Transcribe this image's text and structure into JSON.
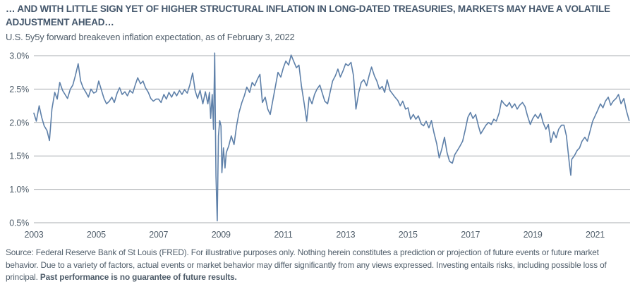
{
  "header": {
    "title": "… AND WITH LITTLE SIGN YET OF HIGHER STRUCTURAL INFLATION IN LONG-DATED TREASURIES, MARKETS MAY HAVE A VOLATILE ADJUSTMENT AHEAD…",
    "subtitle": "U.S. 5y5y forward breakeven inflation expectation, as of February 3, 2022"
  },
  "footer": {
    "source_text": "Source: Federal Reserve Bank of St Louis (FRED). For illustrative purposes only. Nothing herein constitutes a prediction or projection of future events or future market behavior. Due to a variety of factors, actual events or market behavior may differ significantly from any views expressed. Investing entails risks, including possible loss of principal.",
    "source_bold": "Past performance is no guarantee of future results."
  },
  "colors": {
    "title_text": "#44576c",
    "body_text": "#4f5d6a",
    "axis_text": "#4f5d6a",
    "gridline": "#a9adb1",
    "line": "#5e80a9",
    "background": "#ffffff"
  },
  "chart_data": {
    "type": "line",
    "title": "U.S. 5y5y forward breakeven inflation expectation, as of February 3, 2022",
    "xlabel": "",
    "ylabel": "",
    "grid": "horizontal",
    "legend": "none",
    "xlim": [
      2003.0,
      2022.12
    ],
    "ylim": [
      0.5,
      3.0
    ],
    "x_ticks": [
      2003,
      2005,
      2007,
      2009,
      2011,
      2013,
      2015,
      2017,
      2019,
      2021
    ],
    "y_tick_values": [
      3.0,
      2.5,
      2.0,
      1.5,
      1.0,
      0.5
    ],
    "y_tick_labels": [
      "3.0%",
      "2.5%",
      "2.0%",
      "1.5%",
      "1.0%",
      "0.5%"
    ],
    "line_color": "#5e80a9",
    "series": [
      {
        "name": "U.S. 5y5y forward breakeven inflation expectation (%)",
        "points": [
          [
            2003.0,
            2.14
          ],
          [
            2003.08,
            2.02
          ],
          [
            2003.17,
            2.25
          ],
          [
            2003.25,
            2.08
          ],
          [
            2003.33,
            1.95
          ],
          [
            2003.42,
            1.88
          ],
          [
            2003.5,
            1.73
          ],
          [
            2003.58,
            2.2
          ],
          [
            2003.67,
            2.45
          ],
          [
            2003.75,
            2.35
          ],
          [
            2003.83,
            2.6
          ],
          [
            2003.92,
            2.48
          ],
          [
            2004.0,
            2.42
          ],
          [
            2004.08,
            2.36
          ],
          [
            2004.17,
            2.5
          ],
          [
            2004.25,
            2.56
          ],
          [
            2004.33,
            2.7
          ],
          [
            2004.42,
            2.88
          ],
          [
            2004.5,
            2.62
          ],
          [
            2004.58,
            2.52
          ],
          [
            2004.67,
            2.45
          ],
          [
            2004.75,
            2.38
          ],
          [
            2004.83,
            2.5
          ],
          [
            2004.92,
            2.44
          ],
          [
            2005.0,
            2.46
          ],
          [
            2005.08,
            2.62
          ],
          [
            2005.17,
            2.48
          ],
          [
            2005.25,
            2.36
          ],
          [
            2005.33,
            2.28
          ],
          [
            2005.42,
            2.32
          ],
          [
            2005.5,
            2.38
          ],
          [
            2005.58,
            2.3
          ],
          [
            2005.67,
            2.44
          ],
          [
            2005.75,
            2.52
          ],
          [
            2005.83,
            2.42
          ],
          [
            2005.92,
            2.46
          ],
          [
            2006.0,
            2.4
          ],
          [
            2006.08,
            2.48
          ],
          [
            2006.17,
            2.44
          ],
          [
            2006.25,
            2.56
          ],
          [
            2006.33,
            2.67
          ],
          [
            2006.42,
            2.58
          ],
          [
            2006.5,
            2.62
          ],
          [
            2006.58,
            2.52
          ],
          [
            2006.67,
            2.45
          ],
          [
            2006.75,
            2.36
          ],
          [
            2006.83,
            2.32
          ],
          [
            2006.92,
            2.35
          ],
          [
            2007.0,
            2.35
          ],
          [
            2007.08,
            2.3
          ],
          [
            2007.17,
            2.42
          ],
          [
            2007.25,
            2.35
          ],
          [
            2007.33,
            2.45
          ],
          [
            2007.42,
            2.38
          ],
          [
            2007.5,
            2.46
          ],
          [
            2007.58,
            2.4
          ],
          [
            2007.67,
            2.48
          ],
          [
            2007.75,
            2.42
          ],
          [
            2007.83,
            2.49
          ],
          [
            2007.92,
            2.44
          ],
          [
            2008.0,
            2.56
          ],
          [
            2008.09,
            2.74
          ],
          [
            2008.17,
            2.48
          ],
          [
            2008.25,
            2.36
          ],
          [
            2008.33,
            2.48
          ],
          [
            2008.42,
            2.28
          ],
          [
            2008.5,
            2.46
          ],
          [
            2008.58,
            2.28
          ],
          [
            2008.63,
            2.45
          ],
          [
            2008.67,
            2.06
          ],
          [
            2008.72,
            2.42
          ],
          [
            2008.76,
            1.9
          ],
          [
            2008.8,
            3.04
          ],
          [
            2008.84,
            1.2
          ],
          [
            2008.88,
            0.53
          ],
          [
            2008.92,
            1.8
          ],
          [
            2008.96,
            2.03
          ],
          [
            2009.0,
            1.95
          ],
          [
            2009.03,
            1.25
          ],
          [
            2009.08,
            1.62
          ],
          [
            2009.13,
            1.32
          ],
          [
            2009.17,
            1.55
          ],
          [
            2009.25,
            1.65
          ],
          [
            2009.33,
            1.8
          ],
          [
            2009.42,
            1.67
          ],
          [
            2009.5,
            1.95
          ],
          [
            2009.58,
            2.15
          ],
          [
            2009.67,
            2.3
          ],
          [
            2009.75,
            2.4
          ],
          [
            2009.83,
            2.53
          ],
          [
            2009.92,
            2.45
          ],
          [
            2010.0,
            2.6
          ],
          [
            2010.08,
            2.55
          ],
          [
            2010.17,
            2.65
          ],
          [
            2010.25,
            2.72
          ],
          [
            2010.33,
            2.3
          ],
          [
            2010.42,
            2.38
          ],
          [
            2010.5,
            2.2
          ],
          [
            2010.58,
            2.12
          ],
          [
            2010.67,
            2.35
          ],
          [
            2010.75,
            2.55
          ],
          [
            2010.83,
            2.75
          ],
          [
            2010.92,
            2.68
          ],
          [
            2011.0,
            2.82
          ],
          [
            2011.08,
            2.92
          ],
          [
            2011.17,
            2.86
          ],
          [
            2011.25,
            3.01
          ],
          [
            2011.33,
            2.92
          ],
          [
            2011.42,
            2.82
          ],
          [
            2011.5,
            2.86
          ],
          [
            2011.58,
            2.55
          ],
          [
            2011.67,
            2.28
          ],
          [
            2011.75,
            2.02
          ],
          [
            2011.83,
            2.38
          ],
          [
            2011.92,
            2.28
          ],
          [
            2012.0,
            2.42
          ],
          [
            2012.08,
            2.5
          ],
          [
            2012.17,
            2.56
          ],
          [
            2012.25,
            2.44
          ],
          [
            2012.33,
            2.32
          ],
          [
            2012.42,
            2.28
          ],
          [
            2012.5,
            2.45
          ],
          [
            2012.58,
            2.62
          ],
          [
            2012.67,
            2.7
          ],
          [
            2012.75,
            2.8
          ],
          [
            2012.83,
            2.68
          ],
          [
            2012.92,
            2.78
          ],
          [
            2013.0,
            2.88
          ],
          [
            2013.08,
            2.85
          ],
          [
            2013.17,
            2.9
          ],
          [
            2013.25,
            2.7
          ],
          [
            2013.33,
            2.2
          ],
          [
            2013.42,
            2.45
          ],
          [
            2013.5,
            2.6
          ],
          [
            2013.58,
            2.64
          ],
          [
            2013.67,
            2.55
          ],
          [
            2013.75,
            2.7
          ],
          [
            2013.83,
            2.83
          ],
          [
            2013.92,
            2.7
          ],
          [
            2014.0,
            2.62
          ],
          [
            2014.08,
            2.5
          ],
          [
            2014.17,
            2.54
          ],
          [
            2014.25,
            2.45
          ],
          [
            2014.33,
            2.64
          ],
          [
            2014.42,
            2.48
          ],
          [
            2014.5,
            2.43
          ],
          [
            2014.58,
            2.38
          ],
          [
            2014.67,
            2.33
          ],
          [
            2014.75,
            2.25
          ],
          [
            2014.83,
            2.32
          ],
          [
            2014.92,
            2.2
          ],
          [
            2015.0,
            2.22
          ],
          [
            2015.08,
            2.05
          ],
          [
            2015.17,
            2.12
          ],
          [
            2015.25,
            2.05
          ],
          [
            2015.33,
            2.1
          ],
          [
            2015.42,
            1.98
          ],
          [
            2015.5,
            1.95
          ],
          [
            2015.58,
            2.02
          ],
          [
            2015.67,
            1.92
          ],
          [
            2015.75,
            2.03
          ],
          [
            2015.83,
            1.85
          ],
          [
            2015.92,
            1.68
          ],
          [
            2016.0,
            1.47
          ],
          [
            2016.08,
            1.6
          ],
          [
            2016.17,
            1.78
          ],
          [
            2016.25,
            1.55
          ],
          [
            2016.33,
            1.42
          ],
          [
            2016.42,
            1.39
          ],
          [
            2016.5,
            1.52
          ],
          [
            2016.58,
            1.58
          ],
          [
            2016.67,
            1.65
          ],
          [
            2016.75,
            1.72
          ],
          [
            2016.83,
            1.88
          ],
          [
            2016.92,
            2.08
          ],
          [
            2017.0,
            2.15
          ],
          [
            2017.08,
            2.06
          ],
          [
            2017.17,
            2.12
          ],
          [
            2017.25,
            1.96
          ],
          [
            2017.33,
            1.83
          ],
          [
            2017.42,
            1.9
          ],
          [
            2017.5,
            1.96
          ],
          [
            2017.58,
            2.0
          ],
          [
            2017.67,
            1.97
          ],
          [
            2017.75,
            2.05
          ],
          [
            2017.83,
            2.02
          ],
          [
            2017.92,
            2.14
          ],
          [
            2018.0,
            2.33
          ],
          [
            2018.08,
            2.28
          ],
          [
            2018.17,
            2.24
          ],
          [
            2018.25,
            2.3
          ],
          [
            2018.33,
            2.22
          ],
          [
            2018.42,
            2.28
          ],
          [
            2018.5,
            2.2
          ],
          [
            2018.58,
            2.26
          ],
          [
            2018.67,
            2.3
          ],
          [
            2018.75,
            2.24
          ],
          [
            2018.83,
            2.1
          ],
          [
            2018.92,
            1.97
          ],
          [
            2019.0,
            2.06
          ],
          [
            2019.08,
            2.12
          ],
          [
            2019.17,
            2.06
          ],
          [
            2019.25,
            2.14
          ],
          [
            2019.33,
            2.0
          ],
          [
            2019.42,
            1.9
          ],
          [
            2019.5,
            1.97
          ],
          [
            2019.58,
            1.7
          ],
          [
            2019.67,
            1.86
          ],
          [
            2019.75,
            1.77
          ],
          [
            2019.83,
            1.9
          ],
          [
            2019.92,
            1.96
          ],
          [
            2020.0,
            1.96
          ],
          [
            2020.08,
            1.8
          ],
          [
            2020.17,
            1.4
          ],
          [
            2020.22,
            1.21
          ],
          [
            2020.25,
            1.45
          ],
          [
            2020.33,
            1.5
          ],
          [
            2020.42,
            1.58
          ],
          [
            2020.5,
            1.62
          ],
          [
            2020.58,
            1.72
          ],
          [
            2020.67,
            1.78
          ],
          [
            2020.75,
            1.72
          ],
          [
            2020.83,
            1.86
          ],
          [
            2020.92,
            2.02
          ],
          [
            2021.0,
            2.1
          ],
          [
            2021.08,
            2.18
          ],
          [
            2021.17,
            2.28
          ],
          [
            2021.25,
            2.22
          ],
          [
            2021.33,
            2.32
          ],
          [
            2021.42,
            2.38
          ],
          [
            2021.5,
            2.26
          ],
          [
            2021.58,
            2.32
          ],
          [
            2021.67,
            2.36
          ],
          [
            2021.75,
            2.42
          ],
          [
            2021.83,
            2.28
          ],
          [
            2021.92,
            2.36
          ],
          [
            2022.0,
            2.18
          ],
          [
            2022.09,
            2.03
          ]
        ]
      }
    ]
  }
}
